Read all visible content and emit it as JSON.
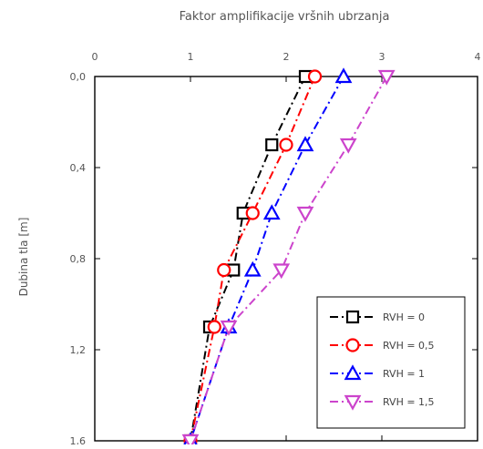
{
  "chart_data": {
    "type": "line",
    "title": "Faktor amplifikacije vršnih ubrzanja",
    "xlabel": "",
    "ylabel": "Dubina tla [m]",
    "xlim": [
      0,
      4
    ],
    "ylim": [
      0,
      1.6
    ],
    "y_inverted": true,
    "x_axis_position": "top",
    "xticks": [
      "0",
      "1",
      "2",
      "3",
      "4"
    ],
    "yticks": [
      "0,0",
      "0,4",
      "0,8",
      "1,2",
      "1,6"
    ],
    "grid": false,
    "legend_position": "bottom-right",
    "series": [
      {
        "name": "RVH = 0",
        "color": "#000000",
        "marker": "square",
        "line_style": "dash-dot",
        "points": [
          {
            "x": 2.2,
            "y": 0.0
          },
          {
            "x": 1.85,
            "y": 0.3
          },
          {
            "x": 1.55,
            "y": 0.6
          },
          {
            "x": 1.45,
            "y": 0.85
          },
          {
            "x": 1.2,
            "y": 1.1
          },
          {
            "x": 1.0,
            "y": 1.6
          }
        ]
      },
      {
        "name": "RVH = 0,5",
        "color": "#ff0000",
        "marker": "circle",
        "line_style": "dash-dot",
        "points": [
          {
            "x": 2.3,
            "y": 0.0
          },
          {
            "x": 2.0,
            "y": 0.3
          },
          {
            "x": 1.65,
            "y": 0.6
          },
          {
            "x": 1.35,
            "y": 0.85
          },
          {
            "x": 1.25,
            "y": 1.1
          },
          {
            "x": 1.0,
            "y": 1.6
          }
        ]
      },
      {
        "name": "RVH = 1",
        "color": "#0000ff",
        "marker": "triangle-up",
        "line_style": "dash-dot",
        "points": [
          {
            "x": 2.6,
            "y": 0.0
          },
          {
            "x": 2.2,
            "y": 0.3
          },
          {
            "x": 1.85,
            "y": 0.6
          },
          {
            "x": 1.65,
            "y": 0.85
          },
          {
            "x": 1.4,
            "y": 1.1
          },
          {
            "x": 1.0,
            "y": 1.6
          }
        ]
      },
      {
        "name": "RVH = 1,5",
        "color": "#cc44cc",
        "marker": "triangle-down",
        "line_style": "dash-dot",
        "points": [
          {
            "x": 3.05,
            "y": 0.0
          },
          {
            "x": 2.65,
            "y": 0.3
          },
          {
            "x": 2.2,
            "y": 0.6
          },
          {
            "x": 1.95,
            "y": 0.85
          },
          {
            "x": 1.4,
            "y": 1.1
          },
          {
            "x": 1.0,
            "y": 1.6
          }
        ]
      }
    ]
  }
}
